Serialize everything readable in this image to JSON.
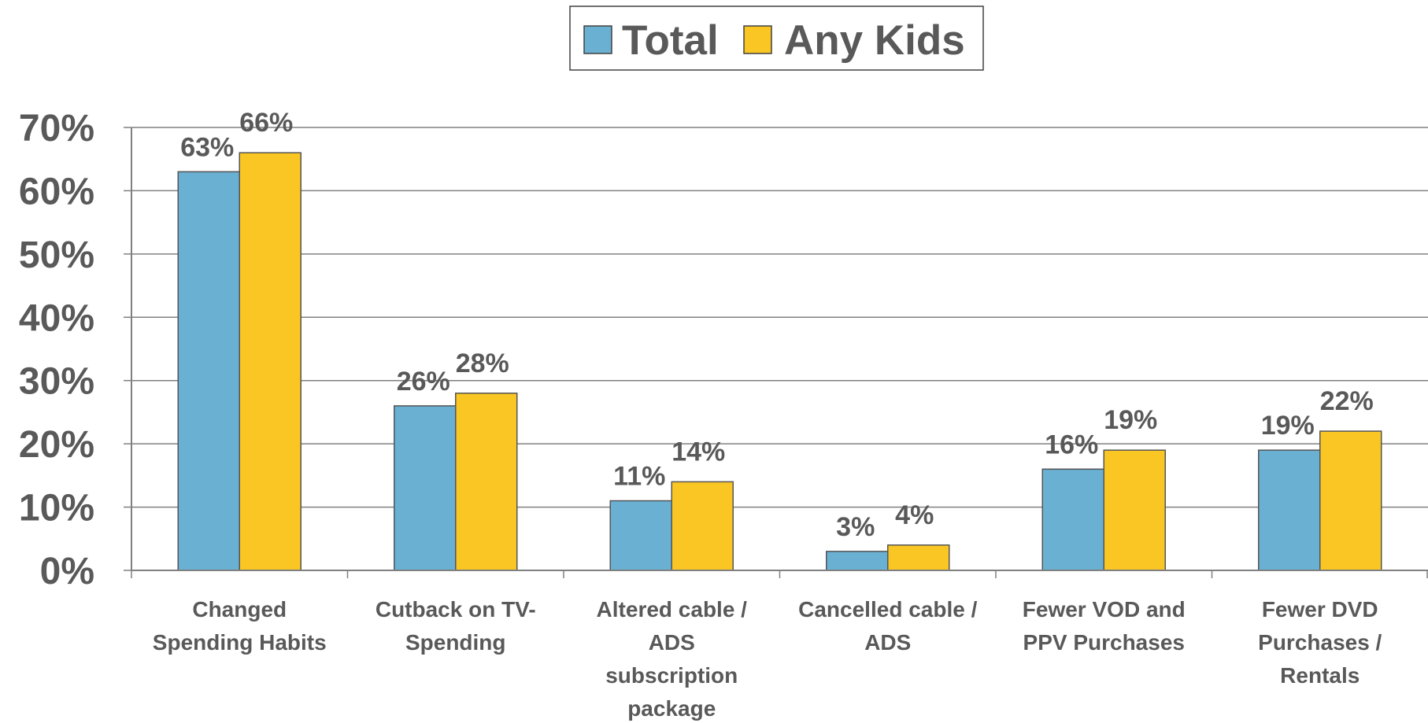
{
  "chart_data": {
    "type": "bar",
    "categories": [
      [
        "Changed",
        "Spending Habits"
      ],
      [
        "Cutback on TV-",
        "Spending"
      ],
      [
        "Altered cable /",
        "ADS",
        "subscription",
        "package"
      ],
      [
        "Cancelled cable /",
        "ADS"
      ],
      [
        "Fewer VOD and",
        "PPV Purchases"
      ],
      [
        "Fewer DVD",
        "Purchases /",
        "Rentals"
      ]
    ],
    "series": [
      {
        "name": "Total",
        "color": "#6AB0D2",
        "values": [
          63,
          26,
          11,
          3,
          16,
          19
        ]
      },
      {
        "name": "Any Kids",
        "color": "#F9C623",
        "values": [
          66,
          28,
          14,
          4,
          19,
          22
        ]
      }
    ],
    "value_suffix": "%",
    "ylim": [
      0,
      70
    ],
    "yticks": [
      "0%",
      "10%",
      "20%",
      "30%",
      "40%",
      "50%",
      "60%",
      "70%"
    ],
    "grid": true,
    "legend_position": "top-center",
    "title": "",
    "xlabel": "",
    "ylabel": ""
  }
}
